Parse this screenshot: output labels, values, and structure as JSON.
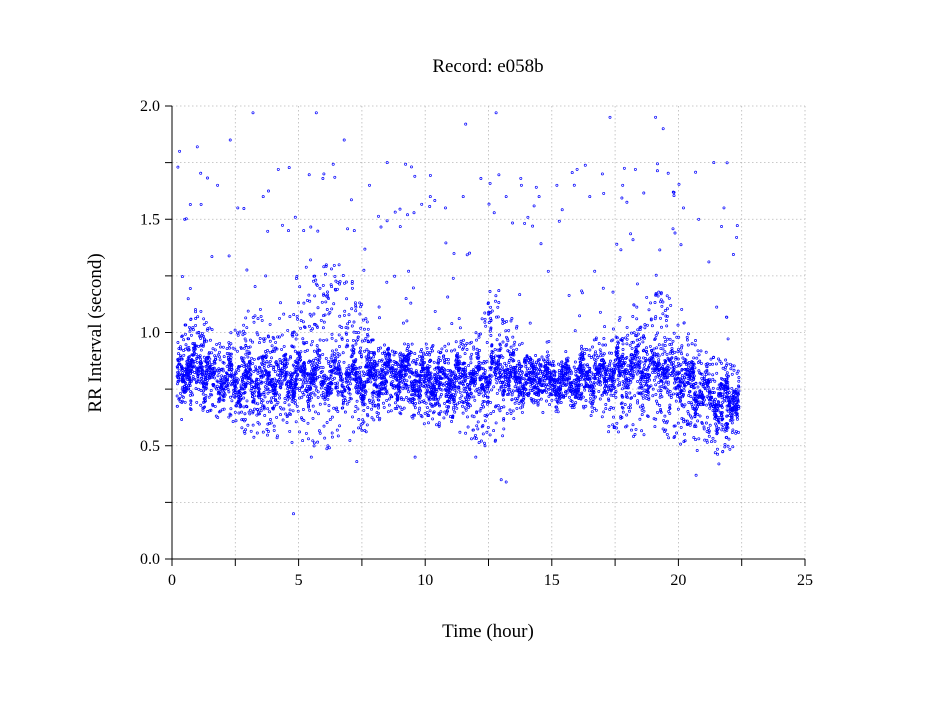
{
  "chart_data": {
    "type": "scatter",
    "title": "Record:  e058b",
    "xlabel": "Time (hour)",
    "ylabel": "RR Interval (second)",
    "xlim": [
      0,
      25
    ],
    "ylim": [
      0.0,
      2.0
    ],
    "x_ticks": [
      "0",
      "5",
      "10",
      "15",
      "20",
      "25"
    ],
    "y_ticks": [
      "0.0",
      "0.5",
      "1.0",
      "1.5",
      "2.0"
    ],
    "x_minor_step": 2.5,
    "y_minor_step": 0.25,
    "grid": true,
    "legend": "none",
    "marker": "open-circle",
    "color": "#0000ff",
    "x_extent": [
      0.2,
      22.4
    ],
    "band_profile": [
      {
        "x": 0.2,
        "center": 0.82,
        "lo": 0.62,
        "hi": 1.0
      },
      {
        "x": 1.0,
        "center": 0.86,
        "lo": 0.66,
        "hi": 1.12
      },
      {
        "x": 2.0,
        "center": 0.78,
        "lo": 0.62,
        "hi": 0.95
      },
      {
        "x": 3.0,
        "center": 0.78,
        "lo": 0.55,
        "hi": 1.1
      },
      {
        "x": 4.0,
        "center": 0.8,
        "lo": 0.55,
        "hi": 1.05
      },
      {
        "x": 5.0,
        "center": 0.8,
        "lo": 0.5,
        "hi": 1.15
      },
      {
        "x": 6.0,
        "center": 0.8,
        "lo": 0.5,
        "hi": 1.32
      },
      {
        "x": 7.0,
        "center": 0.8,
        "lo": 0.52,
        "hi": 1.3
      },
      {
        "x": 8.0,
        "center": 0.8,
        "lo": 0.6,
        "hi": 0.95
      },
      {
        "x": 9.0,
        "center": 0.83,
        "lo": 0.65,
        "hi": 0.95
      },
      {
        "x": 10.0,
        "center": 0.78,
        "lo": 0.6,
        "hi": 0.95
      },
      {
        "x": 11.0,
        "center": 0.78,
        "lo": 0.6,
        "hi": 0.95
      },
      {
        "x": 12.0,
        "center": 0.8,
        "lo": 0.5,
        "hi": 1.0
      },
      {
        "x": 12.8,
        "center": 0.82,
        "lo": 0.5,
        "hi": 1.22
      },
      {
        "x": 14.0,
        "center": 0.8,
        "lo": 0.68,
        "hi": 0.92
      },
      {
        "x": 15.5,
        "center": 0.78,
        "lo": 0.7,
        "hi": 0.86
      },
      {
        "x": 16.5,
        "center": 0.8,
        "lo": 0.65,
        "hi": 0.95
      },
      {
        "x": 17.5,
        "center": 0.82,
        "lo": 0.55,
        "hi": 1.05
      },
      {
        "x": 18.5,
        "center": 0.84,
        "lo": 0.55,
        "hi": 1.15
      },
      {
        "x": 19.5,
        "center": 0.83,
        "lo": 0.52,
        "hi": 1.2
      },
      {
        "x": 20.5,
        "center": 0.78,
        "lo": 0.5,
        "hi": 1.0
      },
      {
        "x": 21.5,
        "center": 0.7,
        "lo": 0.45,
        "hi": 0.9
      },
      {
        "x": 22.4,
        "center": 0.72,
        "lo": 0.5,
        "hi": 0.85
      }
    ],
    "outlier_points": [
      [
        0.3,
        1.8
      ],
      [
        0.5,
        1.5
      ],
      [
        1.0,
        1.82
      ],
      [
        1.8,
        1.65
      ],
      [
        2.3,
        1.85
      ],
      [
        2.6,
        1.55
      ],
      [
        3.2,
        1.97
      ],
      [
        3.6,
        1.6
      ],
      [
        4.2,
        1.72
      ],
      [
        4.6,
        1.45
      ],
      [
        5.2,
        1.45
      ],
      [
        5.7,
        1.97
      ],
      [
        6.0,
        1.7
      ],
      [
        6.8,
        1.85
      ],
      [
        7.2,
        1.45
      ],
      [
        7.8,
        1.65
      ],
      [
        8.5,
        1.75
      ],
      [
        9.3,
        1.52
      ],
      [
        9.6,
        0.45
      ],
      [
        10.2,
        1.6
      ],
      [
        10.8,
        1.55
      ],
      [
        11.5,
        1.6
      ],
      [
        11.6,
        1.92
      ],
      [
        12.2,
        1.68
      ],
      [
        12.8,
        1.97
      ],
      [
        13.2,
        1.6
      ],
      [
        13.0,
        0.35
      ],
      [
        13.8,
        1.65
      ],
      [
        14.5,
        1.6
      ],
      [
        15.2,
        1.65
      ],
      [
        16.0,
        1.72
      ],
      [
        16.5,
        1.6
      ],
      [
        17.0,
        1.7
      ],
      [
        17.3,
        1.95
      ],
      [
        17.8,
        1.65
      ],
      [
        18.3,
        1.72
      ],
      [
        19.1,
        1.95
      ],
      [
        19.4,
        1.9
      ],
      [
        19.8,
        1.62
      ],
      [
        20.2,
        1.55
      ],
      [
        20.8,
        1.5
      ],
      [
        21.4,
        1.75
      ],
      [
        21.8,
        1.55
      ],
      [
        22.3,
        1.42
      ],
      [
        4.8,
        0.2
      ],
      [
        3.7,
        1.25
      ],
      [
        5.5,
        0.45
      ],
      [
        7.3,
        0.43
      ],
      [
        12.0,
        0.45
      ],
      [
        13.2,
        0.34
      ],
      [
        20.7,
        0.37
      ],
      [
        21.6,
        0.42
      ]
    ],
    "sample_count": 9000
  }
}
